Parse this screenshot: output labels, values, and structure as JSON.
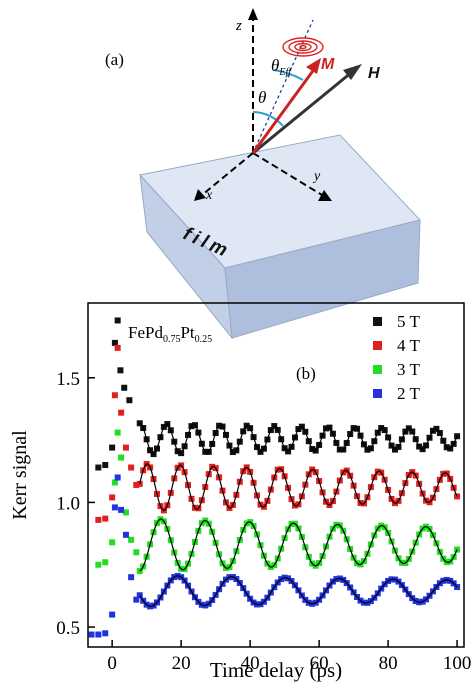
{
  "panel_a": {
    "label": "(a)",
    "axis_z": "z",
    "axis_x": "x",
    "axis_y": "y",
    "vec_m": "M",
    "vec_h": "H",
    "angle_theta": "θ",
    "angle_theta_eff": "θ",
    "angle_theta_eff_sub": "Eff",
    "film_label": "film",
    "colors": {
      "block_top": "#dfe7f4",
      "block_front": "#c7d4ea",
      "block_side": "#aebfdd",
      "magnetization": "#cc2222",
      "field": "#333333",
      "angle_arc": "#2aa0d8"
    }
  },
  "chart_data": {
    "type": "scatter",
    "label": "(b)",
    "title": "",
    "annotation": {
      "base1": "FePd",
      "sub1": "0.75",
      "base2": "Pt",
      "sub2": "0.25"
    },
    "xlabel": "Time delay (ps)",
    "ylabel": "Kerr signal",
    "xlim": [
      -7,
      102
    ],
    "ylim": [
      0.42,
      1.8
    ],
    "xticks": [
      0,
      20,
      40,
      60,
      80,
      100
    ],
    "yticks": [
      0.5,
      1.0,
      1.5
    ],
    "ytick_labels": [
      "0.5",
      "1.0",
      "1.5"
    ],
    "grid": false,
    "legend_position": "top-right",
    "fit_curve_color": "#000000",
    "series": [
      {
        "name": "5 T",
        "color": "#111111",
        "base": 1.255,
        "amp0": 0.065,
        "decay": 200,
        "period": 7.8,
        "phase": 1.4,
        "early": [
          [
            -4,
            1.14
          ],
          [
            -2,
            1.15
          ],
          [
            0,
            1.22
          ],
          [
            0.8,
            1.64
          ],
          [
            1.6,
            1.73
          ],
          [
            2.4,
            1.53
          ],
          [
            3.5,
            1.46
          ],
          [
            5,
            1.41
          ]
        ]
      },
      {
        "name": "4 T",
        "color": "#e02020",
        "base": 1.06,
        "amp0": 0.1,
        "decay": 180,
        "period": 9.6,
        "phase": 1.2,
        "early": [
          [
            -4,
            0.93
          ],
          [
            -2,
            0.935
          ],
          [
            0,
            1.02
          ],
          [
            0.8,
            1.43
          ],
          [
            1.6,
            1.62
          ],
          [
            2.6,
            1.36
          ],
          [
            4,
            1.22
          ],
          [
            5.5,
            1.14
          ],
          [
            7,
            1.07
          ]
        ]
      },
      {
        "name": "3 T",
        "color": "#22dd22",
        "base": 0.83,
        "amp0": 0.11,
        "decay": 220,
        "period": 12.8,
        "phase": 0.9,
        "early": [
          [
            -4,
            0.75
          ],
          [
            -2,
            0.76
          ],
          [
            0,
            0.84
          ],
          [
            0.8,
            1.08
          ],
          [
            1.6,
            1.28
          ],
          [
            2.6,
            1.18
          ],
          [
            4,
            0.96
          ],
          [
            5.5,
            0.85
          ],
          [
            7,
            0.8
          ]
        ]
      },
      {
        "name": "2 T",
        "color": "#2233dd",
        "base": 0.645,
        "amp0": 0.065,
        "decay": 250,
        "period": 15.6,
        "phase": 0.2,
        "early": [
          [
            -6,
            0.47
          ],
          [
            -4,
            0.47
          ],
          [
            -2,
            0.475
          ],
          [
            0,
            0.55
          ],
          [
            0.8,
            0.98
          ],
          [
            1.6,
            1.1
          ],
          [
            2.6,
            0.97
          ],
          [
            4,
            0.87
          ],
          [
            5.5,
            0.7
          ],
          [
            7,
            0.61
          ]
        ]
      }
    ]
  }
}
